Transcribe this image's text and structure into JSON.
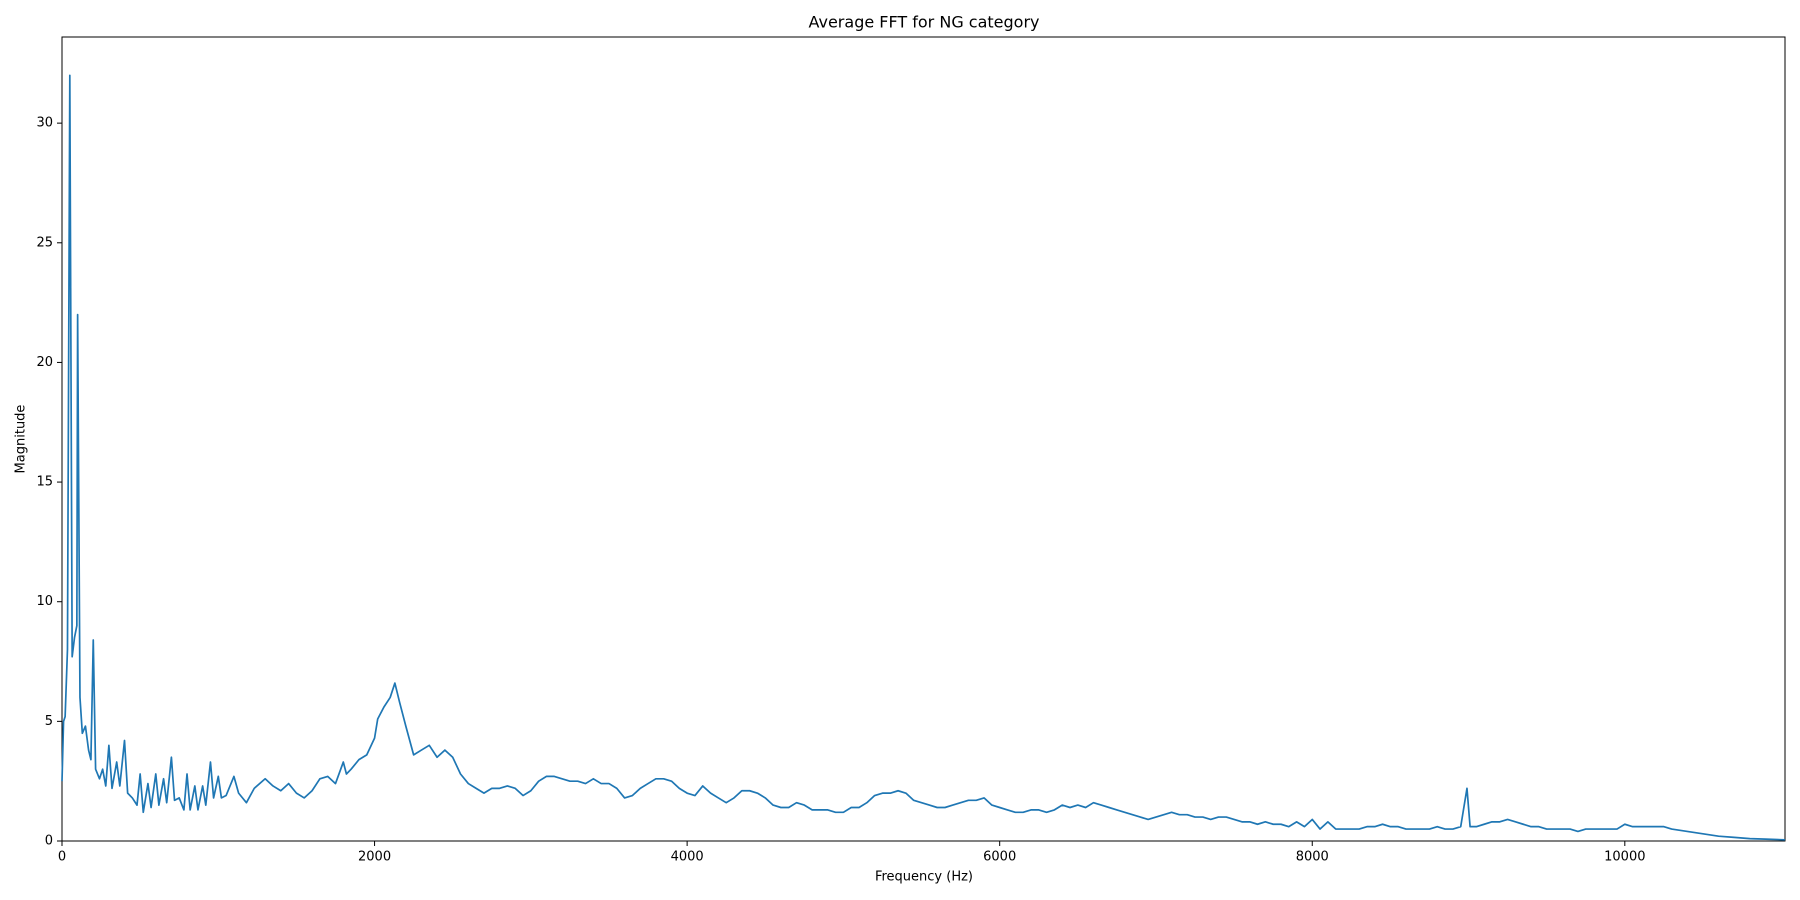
{
  "chart_data": {
    "type": "line",
    "title": "Average FFT for NG category",
    "x_label": "Frequency (Hz)",
    "y_label": "Magnitude",
    "color": "#1f77b4",
    "xlim": [
      0,
      11025
    ],
    "ylim": [
      0,
      33.6
    ],
    "xticks": [
      0,
      2000,
      4000,
      6000,
      8000,
      10000
    ],
    "yticks": [
      0,
      5,
      10,
      15,
      20,
      25,
      30
    ],
    "x": [
      0,
      10,
      20,
      35,
      50,
      65,
      80,
      95,
      100,
      115,
      130,
      150,
      170,
      185,
      200,
      215,
      240,
      260,
      280,
      300,
      320,
      350,
      370,
      400,
      420,
      450,
      480,
      500,
      520,
      550,
      570,
      600,
      620,
      650,
      670,
      700,
      720,
      750,
      780,
      800,
      820,
      850,
      870,
      900,
      920,
      950,
      970,
      1000,
      1020,
      1050,
      1100,
      1130,
      1180,
      1230,
      1300,
      1350,
      1400,
      1450,
      1500,
      1550,
      1600,
      1650,
      1700,
      1750,
      1800,
      1820,
      1850,
      1900,
      1950,
      2000,
      2020,
      2060,
      2100,
      2130,
      2160,
      2200,
      2250,
      2300,
      2350,
      2400,
      2450,
      2500,
      2550,
      2600,
      2650,
      2700,
      2750,
      2800,
      2850,
      2900,
      2950,
      3000,
      3050,
      3100,
      3150,
      3200,
      3250,
      3300,
      3350,
      3400,
      3450,
      3500,
      3550,
      3600,
      3650,
      3700,
      3750,
      3800,
      3850,
      3900,
      3950,
      4000,
      4050,
      4100,
      4150,
      4200,
      4250,
      4300,
      4350,
      4400,
      4450,
      4500,
      4550,
      4600,
      4650,
      4700,
      4750,
      4800,
      4850,
      4900,
      4950,
      5000,
      5050,
      5100,
      5150,
      5200,
      5250,
      5300,
      5350,
      5400,
      5450,
      5500,
      5550,
      5600,
      5650,
      5700,
      5750,
      5800,
      5850,
      5900,
      5950,
      6000,
      6050,
      6100,
      6150,
      6200,
      6250,
      6300,
      6350,
      6400,
      6450,
      6500,
      6550,
      6600,
      6650,
      6700,
      6750,
      6800,
      6850,
      6900,
      6950,
      7000,
      7050,
      7100,
      7150,
      7200,
      7250,
      7300,
      7350,
      7400,
      7450,
      7500,
      7550,
      7600,
      7650,
      7700,
      7750,
      7800,
      7850,
      7900,
      7950,
      8000,
      8050,
      8100,
      8150,
      8200,
      8250,
      8300,
      8350,
      8400,
      8450,
      8500,
      8550,
      8600,
      8650,
      8700,
      8750,
      8800,
      8850,
      8900,
      8950,
      8990,
      9010,
      9050,
      9100,
      9150,
      9200,
      9250,
      9300,
      9350,
      9400,
      9450,
      9500,
      9550,
      9600,
      9650,
      9700,
      9750,
      9800,
      9850,
      9900,
      9950,
      10000,
      10050,
      10100,
      10150,
      10200,
      10250,
      10300,
      10400,
      10500,
      10600,
      10700,
      10800,
      10900,
      11025
    ],
    "values": [
      2.5,
      5,
      5.2,
      8,
      32,
      7.7,
      8.5,
      9,
      22,
      6,
      4.5,
      4.8,
      3.8,
      3.4,
      8.4,
      3,
      2.6,
      3,
      2.3,
      4,
      2.2,
      3.3,
      2.3,
      4.2,
      2,
      1.8,
      1.5,
      2.8,
      1.2,
      2.4,
      1.4,
      2.8,
      1.5,
      2.6,
      1.6,
      3.5,
      1.7,
      1.8,
      1.3,
      2.8,
      1.3,
      2.3,
      1.3,
      2.3,
      1.5,
      3.3,
      1.8,
      2.7,
      1.8,
      1.9,
      2.7,
      2,
      1.6,
      2.2,
      2.6,
      2.3,
      2.1,
      2.4,
      2,
      1.8,
      2.1,
      2.6,
      2.7,
      2.4,
      3.3,
      2.8,
      3,
      3.4,
      3.6,
      4.3,
      5.1,
      5.6,
      6,
      6.6,
      5.8,
      4.8,
      3.6,
      3.8,
      4,
      3.5,
      3.8,
      3.5,
      2.8,
      2.4,
      2.2,
      2,
      2.2,
      2.2,
      2.3,
      2.2,
      1.9,
      2.1,
      2.5,
      2.7,
      2.7,
      2.6,
      2.5,
      2.5,
      2.4,
      2.6,
      2.4,
      2.4,
      2.2,
      1.8,
      1.9,
      2.2,
      2.4,
      2.6,
      2.6,
      2.5,
      2.2,
      2,
      1.9,
      2.3,
      2,
      1.8,
      1.6,
      1.8,
      2.1,
      2.1,
      2,
      1.8,
      1.5,
      1.4,
      1.4,
      1.6,
      1.5,
      1.3,
      1.3,
      1.3,
      1.2,
      1.2,
      1.4,
      1.4,
      1.6,
      1.9,
      2,
      2,
      2.1,
      2,
      1.7,
      1.6,
      1.5,
      1.4,
      1.4,
      1.5,
      1.6,
      1.7,
      1.7,
      1.8,
      1.5,
      1.4,
      1.3,
      1.2,
      1.2,
      1.3,
      1.3,
      1.2,
      1.3,
      1.5,
      1.4,
      1.5,
      1.4,
      1.6,
      1.5,
      1.4,
      1.3,
      1.2,
      1.1,
      1,
      0.9,
      1,
      1.1,
      1.2,
      1.1,
      1.1,
      1,
      1,
      0.9,
      1,
      1,
      0.9,
      0.8,
      0.8,
      0.7,
      0.8,
      0.7,
      0.7,
      0.6,
      0.8,
      0.6,
      0.9,
      0.5,
      0.8,
      0.5,
      0.5,
      0.5,
      0.5,
      0.6,
      0.6,
      0.7,
      0.6,
      0.6,
      0.5,
      0.5,
      0.5,
      0.5,
      0.6,
      0.5,
      0.5,
      0.6,
      2.2,
      0.6,
      0.6,
      0.7,
      0.8,
      0.8,
      0.9,
      0.8,
      0.7,
      0.6,
      0.6,
      0.5,
      0.5,
      0.5,
      0.5,
      0.4,
      0.5,
      0.5,
      0.5,
      0.5,
      0.5,
      0.7,
      0.6,
      0.6,
      0.6,
      0.6,
      0.6,
      0.5,
      0.4,
      0.3,
      0.2,
      0.15,
      0.1,
      0.08,
      0.05
    ]
  }
}
